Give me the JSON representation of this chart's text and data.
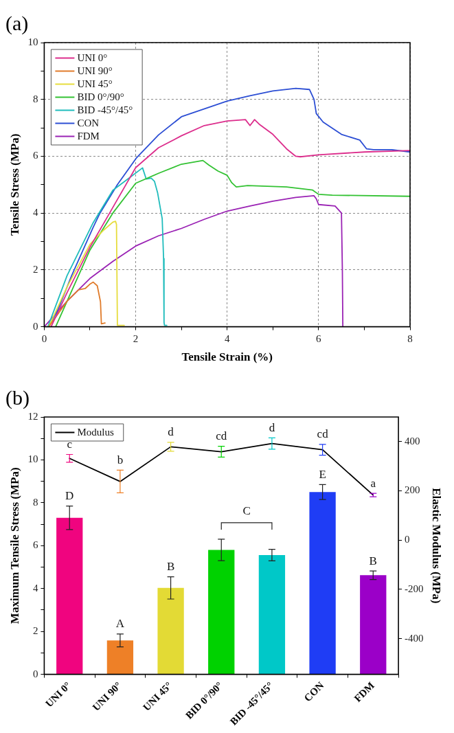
{
  "chart_data": [
    {
      "type": "line",
      "title": "(a)",
      "xlabel": "Tensile Strain (%)",
      "ylabel": "Tensile Stress (MPa)",
      "xlim": [
        0,
        8
      ],
      "ylim": [
        0,
        10
      ],
      "xticks": [
        0,
        {
          "value": 1,
          "label": null
        },
        2,
        {
          "value": 3,
          "label": null
        },
        4,
        {
          "value": 5,
          "label": null
        },
        6,
        {
          "value": 7,
          "label": null
        },
        8
      ],
      "yticks": [
        0,
        {
          "value": 1,
          "label": null
        },
        2,
        {
          "value": 3,
          "label": null
        },
        4,
        {
          "value": 5,
          "label": null
        },
        6,
        {
          "value": 7,
          "label": null
        },
        8,
        {
          "value": 9,
          "label": null
        },
        10
      ],
      "grid": true,
      "legend": "top left",
      "marker": "none",
      "line_style": "solid",
      "series": [
        {
          "name": "UNI 0°",
          "color": "#dc2d8c",
          "x": [
            0.15,
            0.5,
            1,
            1.43,
            2,
            2.5,
            3,
            3.5,
            4,
            4.4,
            4.5,
            4.6,
            4.7,
            5,
            5.3,
            5.5,
            5.6,
            6,
            7,
            8
          ],
          "values": [
            0,
            1.2,
            2.8,
            4,
            5.6,
            6.3,
            6.72,
            7.08,
            7.24,
            7.29,
            7.08,
            7.29,
            7.13,
            6.77,
            6.26,
            6,
            5.98,
            6.05,
            6.15,
            6.2
          ]
        },
        {
          "name": "UNI 90°",
          "color": "#e07b2a",
          "x": [
            0.1,
            0.5,
            0.75,
            0.9,
            1,
            1.07,
            1.16,
            1.23,
            1.25,
            1.33
          ],
          "values": [
            0,
            0.9,
            1.3,
            1.35,
            1.5,
            1.57,
            1.44,
            0.88,
            0.1,
            0.13
          ]
        },
        {
          "name": "UNI 45°",
          "color": "#e6dc3c",
          "x": [
            0.1,
            0.5,
            1,
            1.3,
            1.5,
            1.56,
            1.58,
            1.6,
            1.75
          ],
          "values": [
            0,
            1.4,
            2.9,
            3.4,
            3.68,
            3.71,
            3.6,
            0.05,
            0.05
          ]
        },
        {
          "name": "BID 0°/90°",
          "color": "#33c233",
          "x": [
            0.25,
            0.5,
            1,
            1.5,
            2,
            2.5,
            3,
            3.47,
            3.6,
            3.8,
            4,
            4.1,
            4.2,
            4.45,
            5.3,
            5.87,
            6,
            6.3,
            8
          ],
          "values": [
            0,
            0.9,
            2.7,
            4,
            5.05,
            5.4,
            5.72,
            5.85,
            5.69,
            5.48,
            5.33,
            5.07,
            4.92,
            4.97,
            4.92,
            4.81,
            4.66,
            4.63,
            4.59
          ]
        },
        {
          "name": "BID -45°/45°",
          "color": "#1fbcbc",
          "x": [
            0.08,
            0.5,
            1.07,
            1.5,
            2.15,
            2.23,
            2.34,
            2.41,
            2.48,
            2.58,
            2.61,
            2.62,
            2.63,
            2.68
          ],
          "values": [
            0,
            1.8,
            3.66,
            4.8,
            5.59,
            5.2,
            5.23,
            5.12,
            4.71,
            3.8,
            2.4,
            0.15,
            0.05,
            0.05
          ]
        },
        {
          "name": "CON",
          "color": "#2c4ed4",
          "x": [
            0.1,
            0.3,
            0.6,
            1.07,
            1.22,
            1.6,
            2.02,
            2.5,
            3,
            4,
            4.5,
            5,
            5.5,
            5.8,
            5.9,
            5.95,
            6.1,
            6.5,
            6.9,
            7.05,
            7.2,
            7.6,
            8
          ],
          "values": [
            0,
            0.6,
            1.8,
            3.5,
            4,
            5,
            5.95,
            6.75,
            7.39,
            7.94,
            8.13,
            8.3,
            8.39,
            8.35,
            8,
            7.5,
            7.2,
            6.77,
            6.57,
            6.26,
            6.23,
            6.23,
            6.15
          ]
        },
        {
          "name": "FDM",
          "color": "#9a22b4",
          "x": [
            0,
            0.5,
            1,
            1.5,
            2,
            2.5,
            3,
            3.5,
            4,
            4.5,
            5,
            5.5,
            5.9,
            5.95,
            6,
            6.36,
            6.5,
            6.52,
            6.53
          ],
          "values": [
            0,
            0.9,
            1.7,
            2.3,
            2.84,
            3.2,
            3.46,
            3.78,
            4.07,
            4.25,
            4.42,
            4.55,
            4.61,
            4.5,
            4.3,
            4.25,
            4,
            2,
            0
          ]
        }
      ]
    },
    {
      "type": "bar",
      "title": "(b)",
      "ylabel": "Maximum Tensile Stress (MPa)",
      "y2label": "Elastic Modulus (MPa)",
      "categories": [
        "UNI 0°",
        "UNI 90°",
        "UNI 45°",
        "BID 0°/90°",
        "BID -45°/45°",
        "CON",
        "FDM"
      ],
      "ylim": [
        0,
        12
      ],
      "yticks": [
        0,
        {
          "value": 1,
          "label": null
        },
        2,
        {
          "value": 3,
          "label": null
        },
        4,
        {
          "value": 5,
          "label": null
        },
        6,
        {
          "value": 7,
          "label": null
        },
        8,
        {
          "value": 9,
          "label": null
        },
        10,
        {
          "value": 11,
          "label": null
        },
        12
      ],
      "y2lim": [
        -545,
        500
      ],
      "y2ticks": [
        -400,
        -200,
        0,
        200,
        400
      ],
      "grid": false,
      "legend": "top left",
      "series": [
        {
          "colors": [
            "#f0047f",
            "#ee8027",
            "#e3da35",
            "#00d200",
            "#00c8c8",
            "#1f3df5",
            "#9b00c8"
          ],
          "values": [
            7.3,
            1.58,
            4.03,
            5.8,
            5.56,
            8.5,
            4.62
          ],
          "errors": [
            0.55,
            0.3,
            0.52,
            0.5,
            0.27,
            0.35,
            0.2
          ]
        },
        {
          "type": "line",
          "name": "Modulus",
          "axis": "y2",
          "color": "#000000",
          "colors": [
            "#f0047f",
            "#ee8027",
            "#e3da35",
            "#00d200",
            "#00c8c8",
            "#1f3df5",
            "#9b00c8"
          ],
          "values": [
            332,
            238,
            379,
            359,
            392,
            367,
            183
          ],
          "errors": [
            16,
            46,
            18,
            22,
            23,
            22,
            7
          ]
        }
      ],
      "annotations": [
        "D",
        "A",
        "B",
        "C",
        "E",
        "B",
        "c",
        "b",
        "d",
        "cd",
        "d",
        "cd",
        "a"
      ]
    }
  ]
}
